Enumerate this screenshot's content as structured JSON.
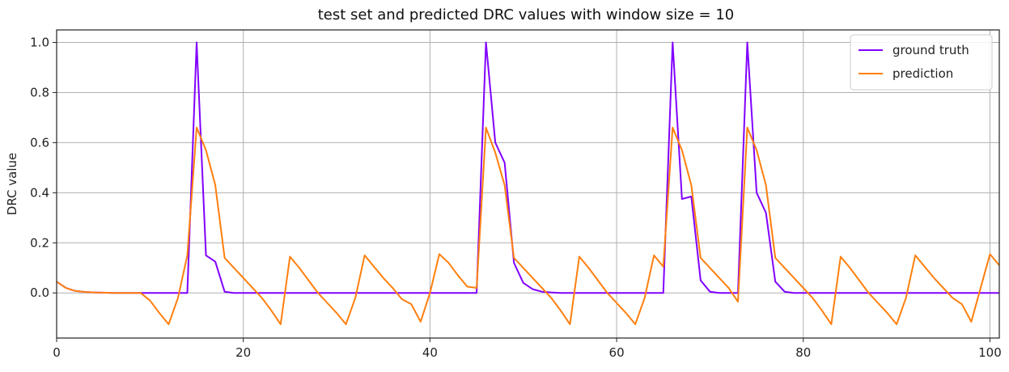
{
  "chart_data": {
    "type": "line",
    "title": "test set and predicted DRC values with window size = 10",
    "xlabel": "",
    "ylabel": "DRC value",
    "xlim": [
      0,
      101
    ],
    "ylim": [
      -0.18,
      1.05
    ],
    "xticks": [
      0,
      20,
      40,
      60,
      80,
      100
    ],
    "yticks": [
      0.0,
      0.2,
      0.4,
      0.6,
      0.8,
      1.0
    ],
    "xtick_labels": [
      "0",
      "20",
      "40",
      "60",
      "80",
      "100"
    ],
    "ytick_labels": [
      "0.0",
      "0.2",
      "0.4",
      "0.6",
      "0.8",
      "1.0"
    ],
    "grid": true,
    "legend_position": "top-right",
    "x": [
      0,
      1,
      2,
      3,
      4,
      5,
      6,
      7,
      8,
      9,
      10,
      11,
      12,
      13,
      14,
      15,
      16,
      17,
      18,
      19,
      20,
      21,
      22,
      23,
      24,
      25,
      26,
      27,
      28,
      29,
      30,
      31,
      32,
      33,
      34,
      35,
      36,
      37,
      38,
      39,
      40,
      41,
      42,
      43,
      44,
      45,
      46,
      47,
      48,
      49,
      50,
      51,
      52,
      53,
      54,
      55,
      56,
      57,
      58,
      59,
      60,
      61,
      62,
      63,
      64,
      65,
      66,
      67,
      68,
      69,
      70,
      71,
      72,
      73,
      74,
      75,
      76,
      77,
      78,
      79,
      80,
      81,
      82,
      83,
      84,
      85,
      86,
      87,
      88,
      89,
      90,
      91,
      92,
      93,
      94,
      95,
      96,
      97,
      98,
      99,
      100,
      101
    ],
    "series": [
      {
        "name": "ground truth",
        "color": "#8000ff",
        "values": [
          0.045,
          0.02,
          0.008,
          0.004,
          0.002,
          0.001,
          0.0,
          0.0,
          0.0,
          0.0,
          0.0,
          0.0,
          0.0,
          0.0,
          0.0,
          1.0,
          0.15,
          0.125,
          0.005,
          0.0,
          0.0,
          0.0,
          0.0,
          0.0,
          0.0,
          0.0,
          0.0,
          0.0,
          0.0,
          0.0,
          0.0,
          0.0,
          0.0,
          0.0,
          0.0,
          0.0,
          0.0,
          0.0,
          0.0,
          0.0,
          0.0,
          0.0,
          0.0,
          0.0,
          0.0,
          0.0,
          1.0,
          0.6,
          0.52,
          0.12,
          0.04,
          0.015,
          0.005,
          0.002,
          0.0,
          0.0,
          0.0,
          0.0,
          0.0,
          0.0,
          0.0,
          0.0,
          0.0,
          0.0,
          0.0,
          0.0,
          1.0,
          0.375,
          0.385,
          0.05,
          0.005,
          0.0,
          0.0,
          0.0,
          1.0,
          0.4,
          0.32,
          0.045,
          0.005,
          0.0,
          0.0,
          0.0,
          0.0,
          0.0,
          0.0,
          0.0,
          0.0,
          0.0,
          0.0,
          0.0,
          0.0,
          0.0,
          0.0,
          0.0,
          0.0,
          0.0,
          0.0,
          0.0,
          0.0,
          0.0,
          0.0,
          0.0
        ]
      },
      {
        "name": "prediction",
        "color": "#ff7f0e",
        "values": [
          0.045,
          0.02,
          0.008,
          0.004,
          0.002,
          0.001,
          0.0,
          0.0,
          0.0,
          0.0,
          -0.03,
          -0.08,
          -0.125,
          -0.02,
          0.15,
          0.66,
          0.57,
          0.43,
          0.14,
          0.1,
          0.06,
          0.02,
          -0.02,
          -0.07,
          -0.125,
          0.145,
          0.1,
          0.05,
          0.0,
          -0.04,
          -0.08,
          -0.125,
          -0.02,
          0.15,
          0.105,
          0.06,
          0.02,
          -0.025,
          -0.045,
          -0.115,
          0.0,
          0.155,
          0.12,
          0.07,
          0.025,
          0.02,
          0.66,
          0.56,
          0.43,
          0.14,
          0.1,
          0.06,
          0.02,
          -0.02,
          -0.07,
          -0.125,
          0.145,
          0.1,
          0.05,
          0.0,
          -0.04,
          -0.08,
          -0.125,
          -0.02,
          0.15,
          0.105,
          0.66,
          0.57,
          0.43,
          0.14,
          0.1,
          0.06,
          0.02,
          -0.035,
          0.66,
          0.57,
          0.43,
          0.14,
          0.1,
          0.06,
          0.02,
          -0.02,
          -0.07,
          -0.125,
          0.145,
          0.1,
          0.05,
          0.0,
          -0.04,
          -0.08,
          -0.125,
          -0.02,
          0.15,
          0.105,
          0.06,
          0.02,
          -0.02,
          -0.045,
          -0.115,
          0.02,
          0.155,
          0.11
        ]
      }
    ]
  }
}
